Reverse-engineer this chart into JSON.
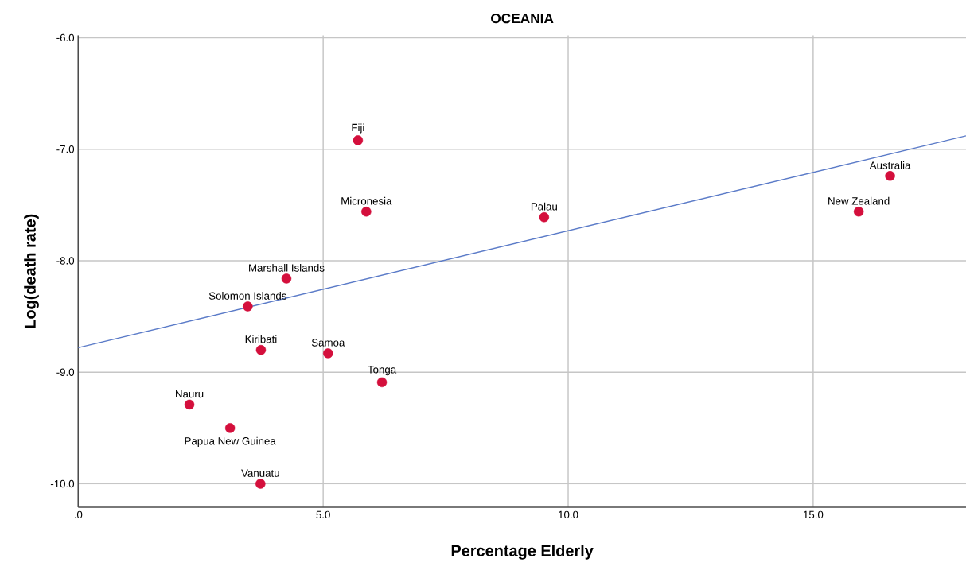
{
  "chart_data": {
    "type": "scatter",
    "title": "OCEANIA",
    "xlabel": "Percentage Elderly",
    "ylabel": "Log(death rate)",
    "xlim": [
      0,
      18.12
    ],
    "ylim": [
      -10.21,
      -5.98
    ],
    "xticks": [
      {
        "value": 0,
        "label": ".0"
      },
      {
        "value": 5,
        "label": "5.0"
      },
      {
        "value": 10,
        "label": "10.0"
      },
      {
        "value": 15,
        "label": "15.0"
      }
    ],
    "yticks": [
      {
        "value": -6,
        "label": "-6.0"
      },
      {
        "value": -7,
        "label": "-7.0"
      },
      {
        "value": -8,
        "label": "-8.0"
      },
      {
        "value": -9,
        "label": "-9.0"
      },
      {
        "value": -10,
        "label": "-10.0"
      }
    ],
    "grid": true,
    "series": [
      {
        "marker": "circle",
        "color": "#d40f3c",
        "x": [
          5.71,
          5.88,
          9.51,
          16.57,
          15.93,
          4.25,
          3.46,
          3.73,
          5.1,
          6.2,
          2.27,
          3.1,
          3.72
        ],
        "values": [
          -6.92,
          -7.56,
          -7.61,
          -7.24,
          -7.56,
          -8.16,
          -8.41,
          -8.8,
          -8.83,
          -9.09,
          -9.29,
          -9.5,
          -10.0
        ]
      },
      {
        "type": "line",
        "marker": "none",
        "color": "#5b7bc8",
        "x": [
          0,
          18.12
        ],
        "values": [
          -8.78,
          -6.88
        ]
      }
    ],
    "annotations": [
      {
        "text": "Fiji",
        "x": 5.71,
        "y": -6.92
      },
      {
        "text": "Micronesia",
        "x": 5.88,
        "y": -7.56
      },
      {
        "text": "Palau",
        "x": 9.51,
        "y": -7.61
      },
      {
        "text": "Australia",
        "x": 16.57,
        "y": -7.24
      },
      {
        "text": "New Zealand",
        "x": 15.93,
        "y": -7.56
      },
      {
        "text": "Marshall Islands",
        "x": 4.25,
        "y": -8.16
      },
      {
        "text": "Solomon Islands",
        "x": 3.46,
        "y": -8.41
      },
      {
        "text": "Kiribati",
        "x": 3.73,
        "y": -8.8
      },
      {
        "text": "Samoa",
        "x": 5.1,
        "y": -8.83
      },
      {
        "text": "Tonga",
        "x": 6.2,
        "y": -9.09
      },
      {
        "text": "Nauru",
        "x": 2.27,
        "y": -9.29
      },
      {
        "text": "Papua New Guinea",
        "x": 3.1,
        "y": -9.5
      },
      {
        "text": "Vanuatu",
        "x": 3.72,
        "y": -10.0
      }
    ]
  }
}
